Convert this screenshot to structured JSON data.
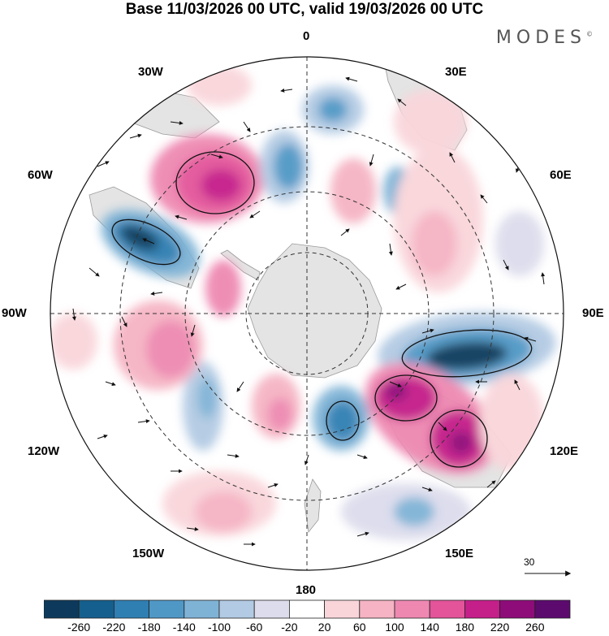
{
  "title": "Base 11/03/2026 00 UTC, valid 19/03/2026 00 UTC",
  "brand": "MODES",
  "brand_mark": "©",
  "longitude_labels": {
    "n0": "0",
    "e30": "30E",
    "e60": "60E",
    "e90": "90E",
    "e120": "120E",
    "e150": "150E",
    "s180": "180",
    "w150": "150W",
    "w120": "120W",
    "w90": "90W",
    "w60": "60W",
    "w30": "30W"
  },
  "reference_vector": {
    "label": "30"
  },
  "colorbar": {
    "tick_labels": [
      "-260",
      "-220",
      "-180",
      "-140",
      "-100",
      "-60",
      "-20",
      "20",
      "60",
      "100",
      "140",
      "180",
      "220",
      "260"
    ],
    "colors": [
      "#0d3a5c",
      "#155f8e",
      "#2f7fb3",
      "#4f98c6",
      "#7fb3d6",
      "#b2cae3",
      "#dcdcec",
      "#ffffff",
      "#f9d5da",
      "#f5b3c3",
      "#ee88b1",
      "#e3549a",
      "#c51f8a",
      "#8e0c79",
      "#5c0a6e"
    ]
  },
  "colors": {
    "land": "#e4e4e4",
    "grid": "#333333",
    "contour": "#111111"
  }
}
